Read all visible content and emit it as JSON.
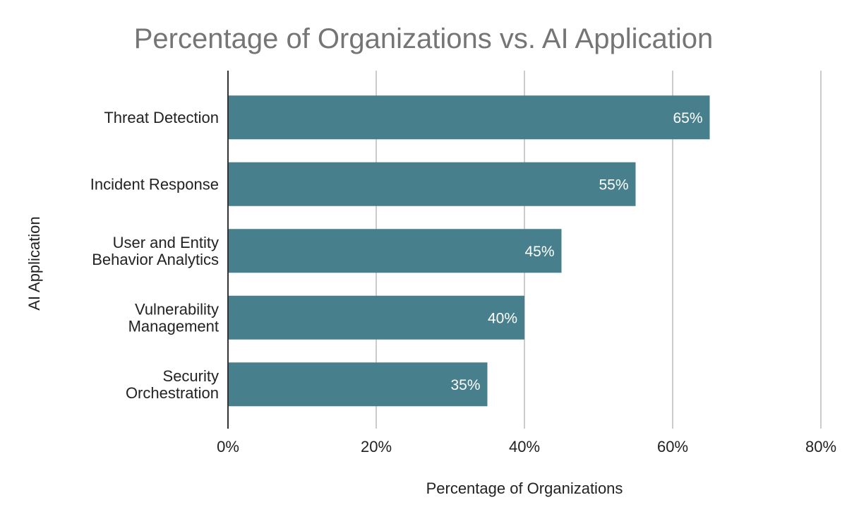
{
  "chart_data": {
    "type": "bar",
    "orientation": "horizontal",
    "title": "Percentage of Organizations vs. AI Application",
    "xlabel": "Percentage of Organizations",
    "ylabel": "AI Application",
    "categories": [
      "Threat Detection",
      "Incident Response",
      "User and Entity Behavior Analytics",
      "Vulnerability Management",
      "Security Orchestration"
    ],
    "category_lines": [
      [
        "Threat Detection"
      ],
      [
        "Incident Response"
      ],
      [
        "User and Entity",
        "Behavior Analytics"
      ],
      [
        "Vulnerability",
        "Management"
      ],
      [
        "Security",
        "Orchestration"
      ]
    ],
    "values": [
      65,
      55,
      45,
      40,
      35
    ],
    "data_labels": [
      "65%",
      "55%",
      "45%",
      "40%",
      "35%"
    ],
    "xlim": [
      0,
      80
    ],
    "ticks": [
      0,
      20,
      40,
      60,
      80
    ],
    "tick_labels": [
      "0%",
      "20%",
      "40%",
      "60%",
      "80%"
    ],
    "grid": true,
    "legend": "none",
    "bar_color": "#47808c"
  }
}
